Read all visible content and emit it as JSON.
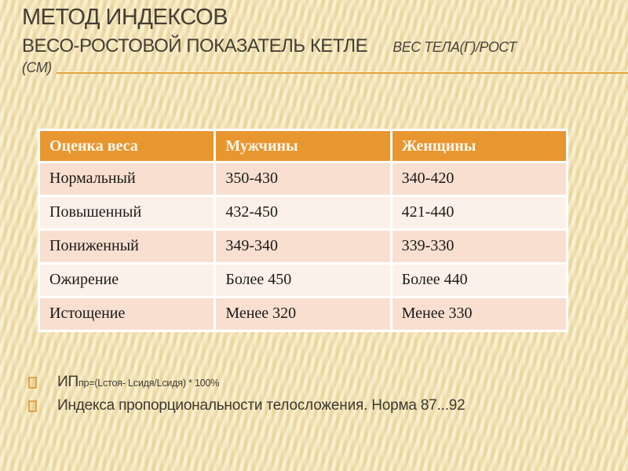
{
  "title": {
    "line1": "МЕТОД ИНДЕКСОВ",
    "line2": "ВЕСО-РОСТОВОЙ ПОКАЗАТЕЛЬ КЕТЛЕ",
    "annotation": "ВЕС ТЕЛА(Г)/РОСТ",
    "annotation_cm": "(СМ)"
  },
  "table": {
    "headers": [
      "Оценка веса",
      "Мужчины",
      "Женщины"
    ],
    "rows": [
      [
        "Нормальный",
        "350-430",
        "340-420"
      ],
      [
        "Повышенный",
        "432-450",
        "421-440"
      ],
      [
        "Пониженный",
        "349-340",
        "339-330"
      ],
      [
        "Ожирение",
        "Более 450",
        "Более 440"
      ],
      [
        "Истощение",
        "Менее 320",
        "Менее 330"
      ]
    ]
  },
  "notes": {
    "formula_base": "ИП",
    "formula_sub": "пр=(Lстоя- Lсидя/Lсидя) * 100%",
    "line2": "Индекса пропорциональности телосложения. Норма 87...92"
  },
  "colors": {
    "background": "#F2E3B3",
    "accent_line": "#E3A33F",
    "table_header_bg": "#E8962F",
    "table_row_dark": "#F8DFD0",
    "table_row_light": "#FCF1E8",
    "title_text": "#443E35"
  }
}
